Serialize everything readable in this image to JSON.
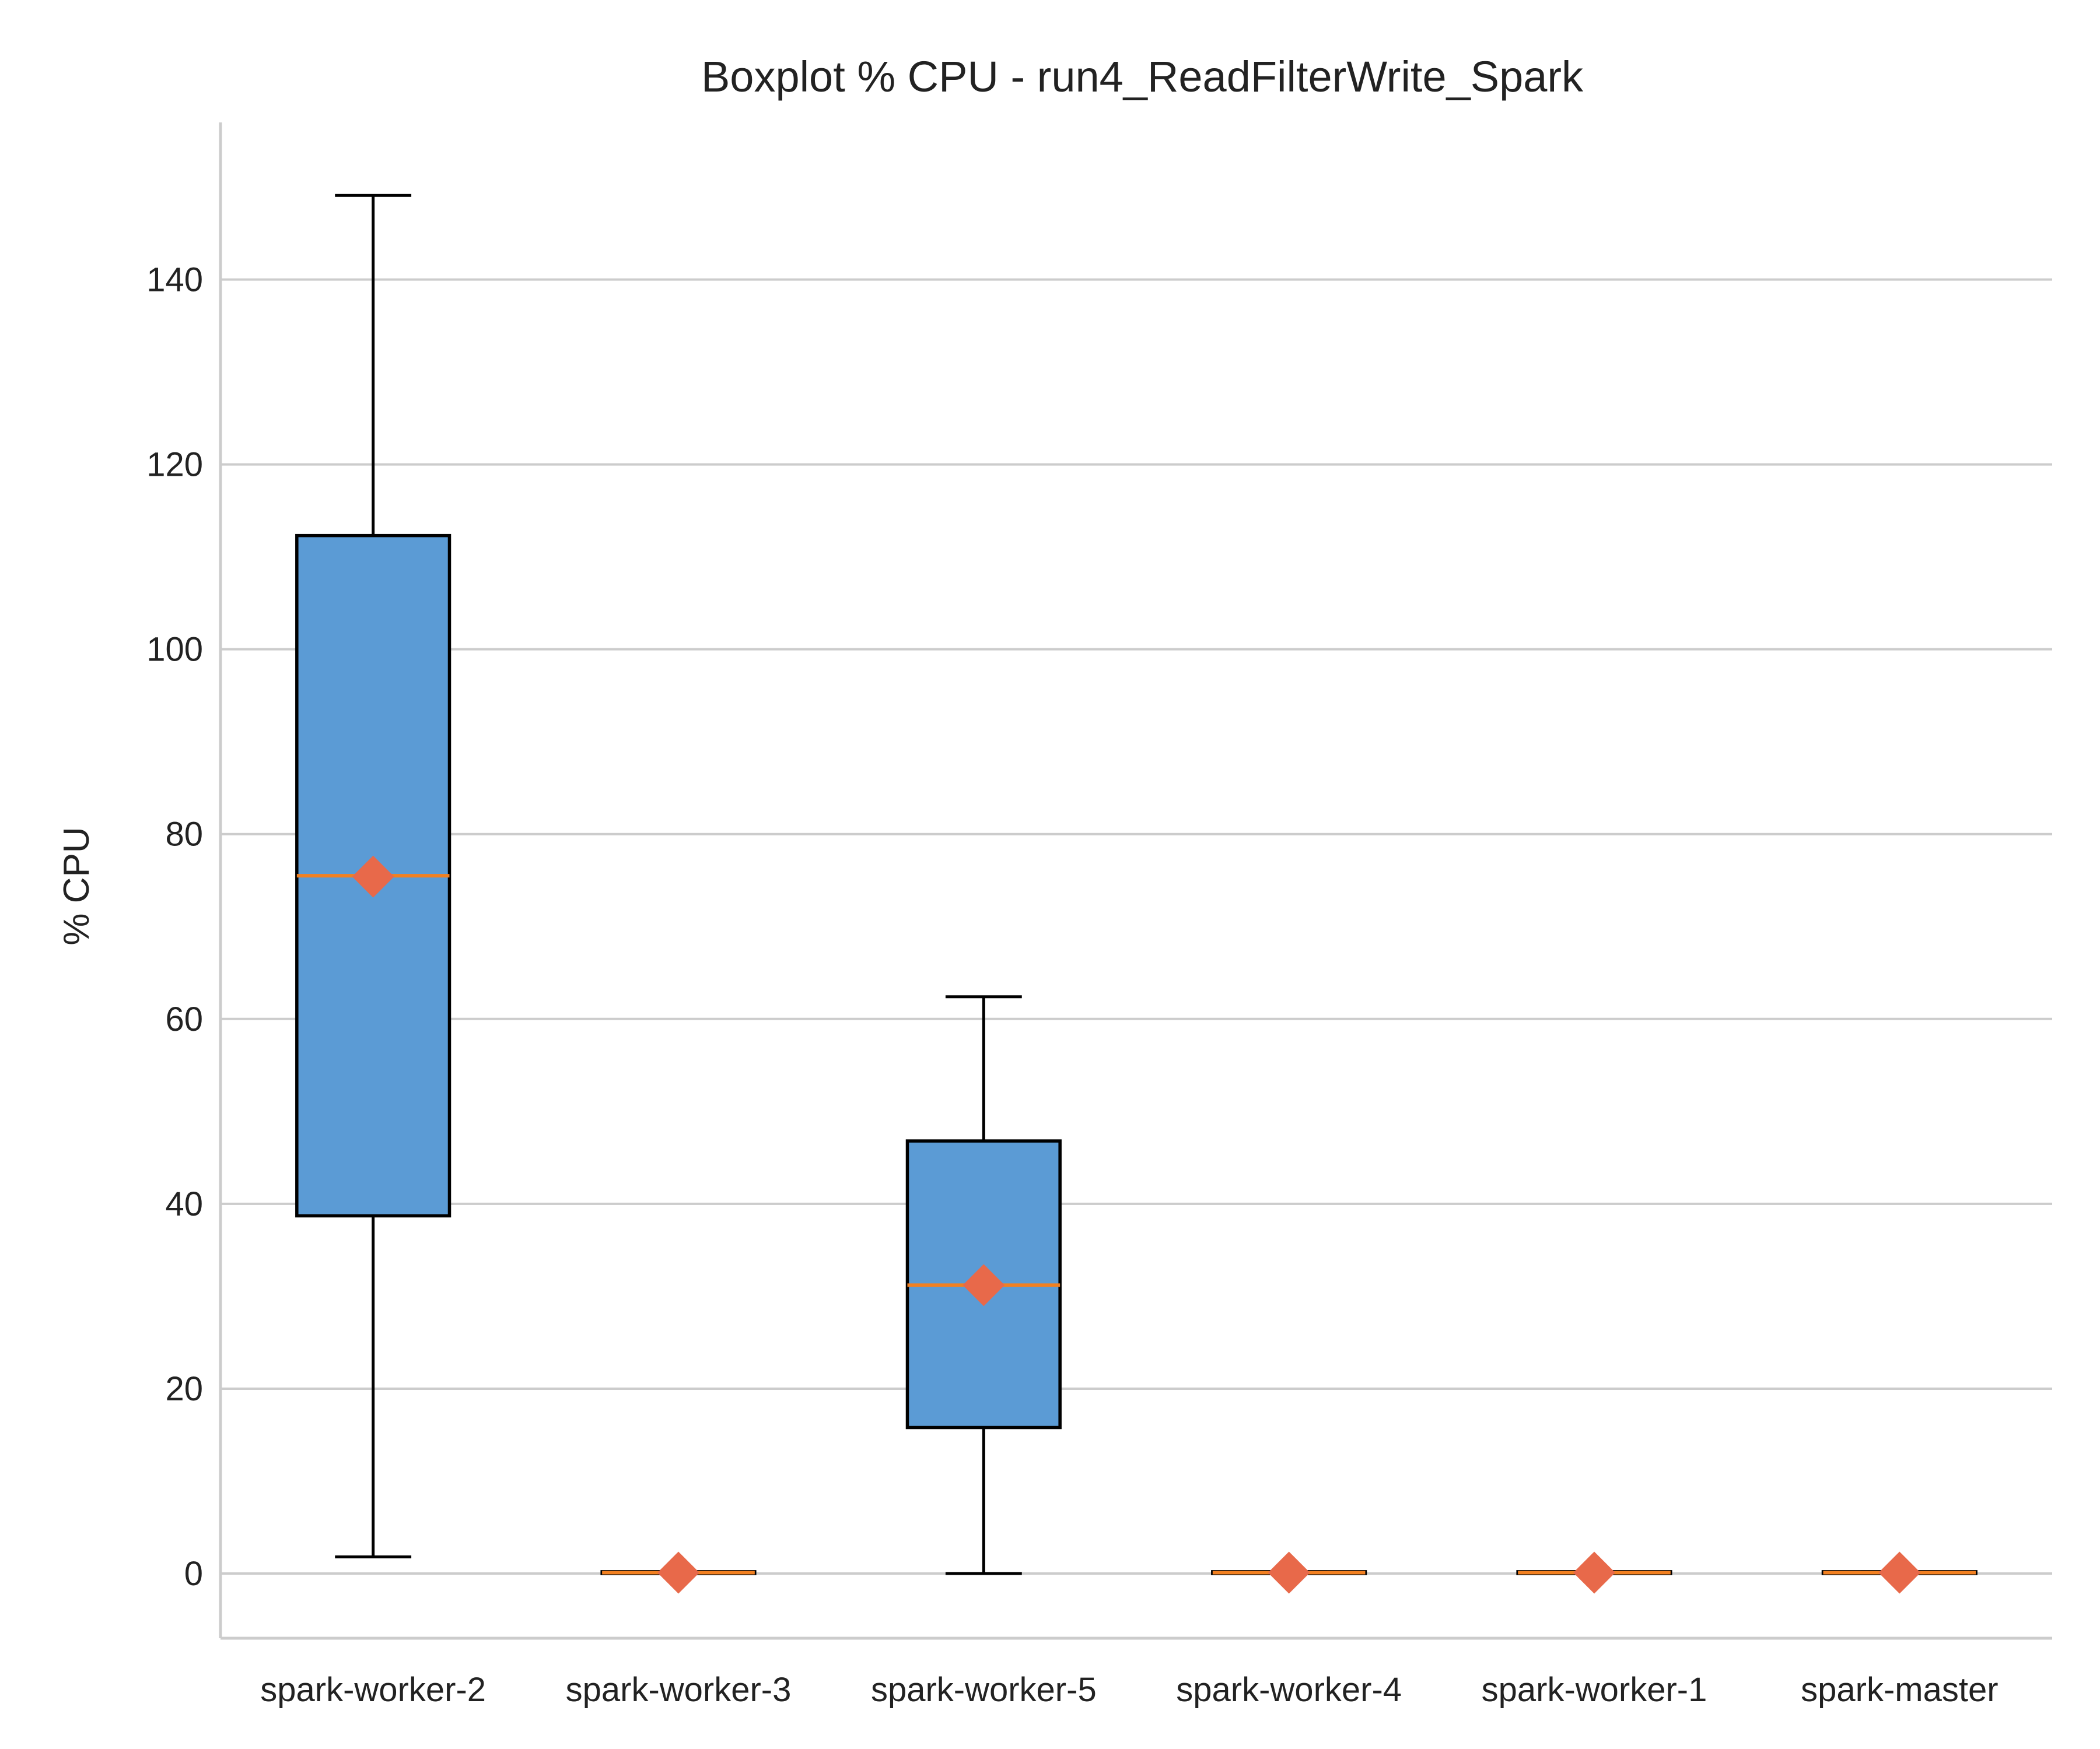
{
  "chart_data": {
    "type": "boxplot",
    "title": "Boxplot % CPU - run4_ReadFilterWrite_Spark",
    "ylabel": "% CPU",
    "xlabel": "",
    "ylim": [
      -7,
      157
    ],
    "yticks": [
      0,
      20,
      40,
      60,
      80,
      100,
      120,
      140
    ],
    "grid": "horizontal",
    "categories": [
      "spark-worker-2",
      "spark-worker-3",
      "spark-worker-5",
      "spark-worker-4",
      "spark-worker-1",
      "spark-master"
    ],
    "boxes": [
      {
        "label": "spark-worker-2",
        "whisker_low": 1.8,
        "q1": 38.7,
        "median": 75.5,
        "q3": 112.3,
        "whisker_high": 149.1,
        "mean": 75.4
      },
      {
        "label": "spark-worker-3",
        "whisker_low": 0.0,
        "q1": 0.0,
        "median": 0.1,
        "q3": 0.2,
        "whisker_high": 0.2,
        "mean": 0.1
      },
      {
        "label": "spark-worker-5",
        "whisker_low": 0.0,
        "q1": 15.8,
        "median": 31.2,
        "q3": 46.8,
        "whisker_high": 62.4,
        "mean": 31.2
      },
      {
        "label": "spark-worker-4",
        "whisker_low": 0.0,
        "q1": 0.0,
        "median": 0.1,
        "q3": 0.2,
        "whisker_high": 0.2,
        "mean": 0.1
      },
      {
        "label": "spark-worker-1",
        "whisker_low": 0.0,
        "q1": 0.0,
        "median": 0.1,
        "q3": 0.2,
        "whisker_high": 0.2,
        "mean": 0.1
      },
      {
        "label": "spark-master",
        "whisker_low": 0.0,
        "q1": 0.0,
        "median": 0.1,
        "q3": 0.2,
        "whisker_high": 0.2,
        "mean": 0.1
      }
    ],
    "colors": {
      "box_fill": "#5b9bd5",
      "box_edge": "#000000",
      "median": "#f28020",
      "mean_marker": "#e8694a",
      "grid": "#cccccc"
    }
  }
}
